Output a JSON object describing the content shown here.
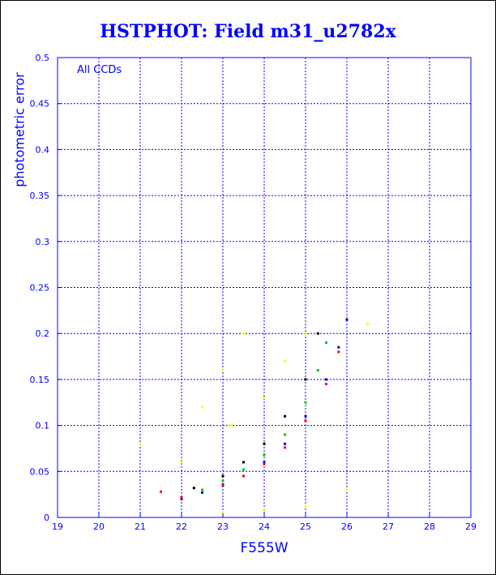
{
  "chart_data": {
    "type": "scatter",
    "title": "HSTPHOT: Field m31_u2782x",
    "xlabel": "F555W",
    "ylabel": "photometric error",
    "annotation": "All CCDs",
    "xlim": [
      19,
      29
    ],
    "ylim": [
      0,
      0.5
    ],
    "grid": true,
    "x_ticks": [
      "19",
      "20",
      "21",
      "22",
      "23",
      "24",
      "25",
      "26",
      "27",
      "28",
      "29"
    ],
    "y_ticks": [
      "0",
      "0.05",
      "0.1",
      "0.15",
      "0.2",
      "0.25",
      "0.3",
      "0.35",
      "0.4",
      "0.45",
      "0.5"
    ],
    "colors": {
      "frame": "#0000ff",
      "grid": "#0000ff",
      "text": "#0000ff",
      "series_red": "#ff0000",
      "series_green": "#00c800",
      "series_black": "#000000",
      "series_blue": "#0000ff",
      "series_yellow": "#ffff00"
    },
    "series": [
      {
        "color": "#0000ff",
        "trend": "lower envelope curve",
        "points": [
          [
            22.0,
            0.02
          ],
          [
            22.5,
            0.027
          ],
          [
            23.0,
            0.035
          ],
          [
            23.5,
            0.045
          ],
          [
            24.0,
            0.06
          ],
          [
            24.5,
            0.08
          ],
          [
            25.0,
            0.11
          ],
          [
            25.5,
            0.15
          ],
          [
            25.8,
            0.185
          ],
          [
            26.0,
            0.215
          ]
        ]
      },
      {
        "color": "#ff0000",
        "trend": "lower edge of main sequence",
        "points": [
          [
            21.5,
            0.028
          ],
          [
            22.0,
            0.022
          ],
          [
            23.0,
            0.036
          ],
          [
            23.5,
            0.045
          ],
          [
            24.0,
            0.058
          ],
          [
            24.5,
            0.076
          ],
          [
            25.0,
            0.105
          ],
          [
            25.5,
            0.145
          ],
          [
            25.8,
            0.18
          ]
        ]
      },
      {
        "color": "#00c800",
        "trend": "scattered above envelope",
        "points": [
          [
            22.5,
            0.03
          ],
          [
            23.0,
            0.04
          ],
          [
            23.5,
            0.052
          ],
          [
            24.0,
            0.068
          ],
          [
            24.5,
            0.09
          ],
          [
            25.0,
            0.125
          ],
          [
            25.3,
            0.16
          ],
          [
            25.5,
            0.19
          ]
        ]
      },
      {
        "color": "#000000",
        "trend": "scattered above envelope",
        "points": [
          [
            22.3,
            0.032
          ],
          [
            23.0,
            0.045
          ],
          [
            23.5,
            0.06
          ],
          [
            24.0,
            0.08
          ],
          [
            24.5,
            0.11
          ],
          [
            25.0,
            0.15
          ],
          [
            25.3,
            0.2
          ]
        ]
      },
      {
        "color": "#ffff00",
        "trend": "broad cloud plus faint low-error branch",
        "points": [
          [
            21.0,
            0.08
          ],
          [
            22.0,
            0.06
          ],
          [
            22.5,
            0.12
          ],
          [
            23.0,
            0.16
          ],
          [
            23.2,
            0.1
          ],
          [
            23.5,
            0.2
          ],
          [
            24.0,
            0.13
          ],
          [
            24.5,
            0.17
          ],
          [
            25.0,
            0.2
          ],
          [
            23.0,
            0.005
          ],
          [
            24.0,
            0.008
          ],
          [
            25.0,
            0.012
          ],
          [
            26.0,
            0.03
          ],
          [
            26.5,
            0.21
          ]
        ]
      }
    ]
  }
}
